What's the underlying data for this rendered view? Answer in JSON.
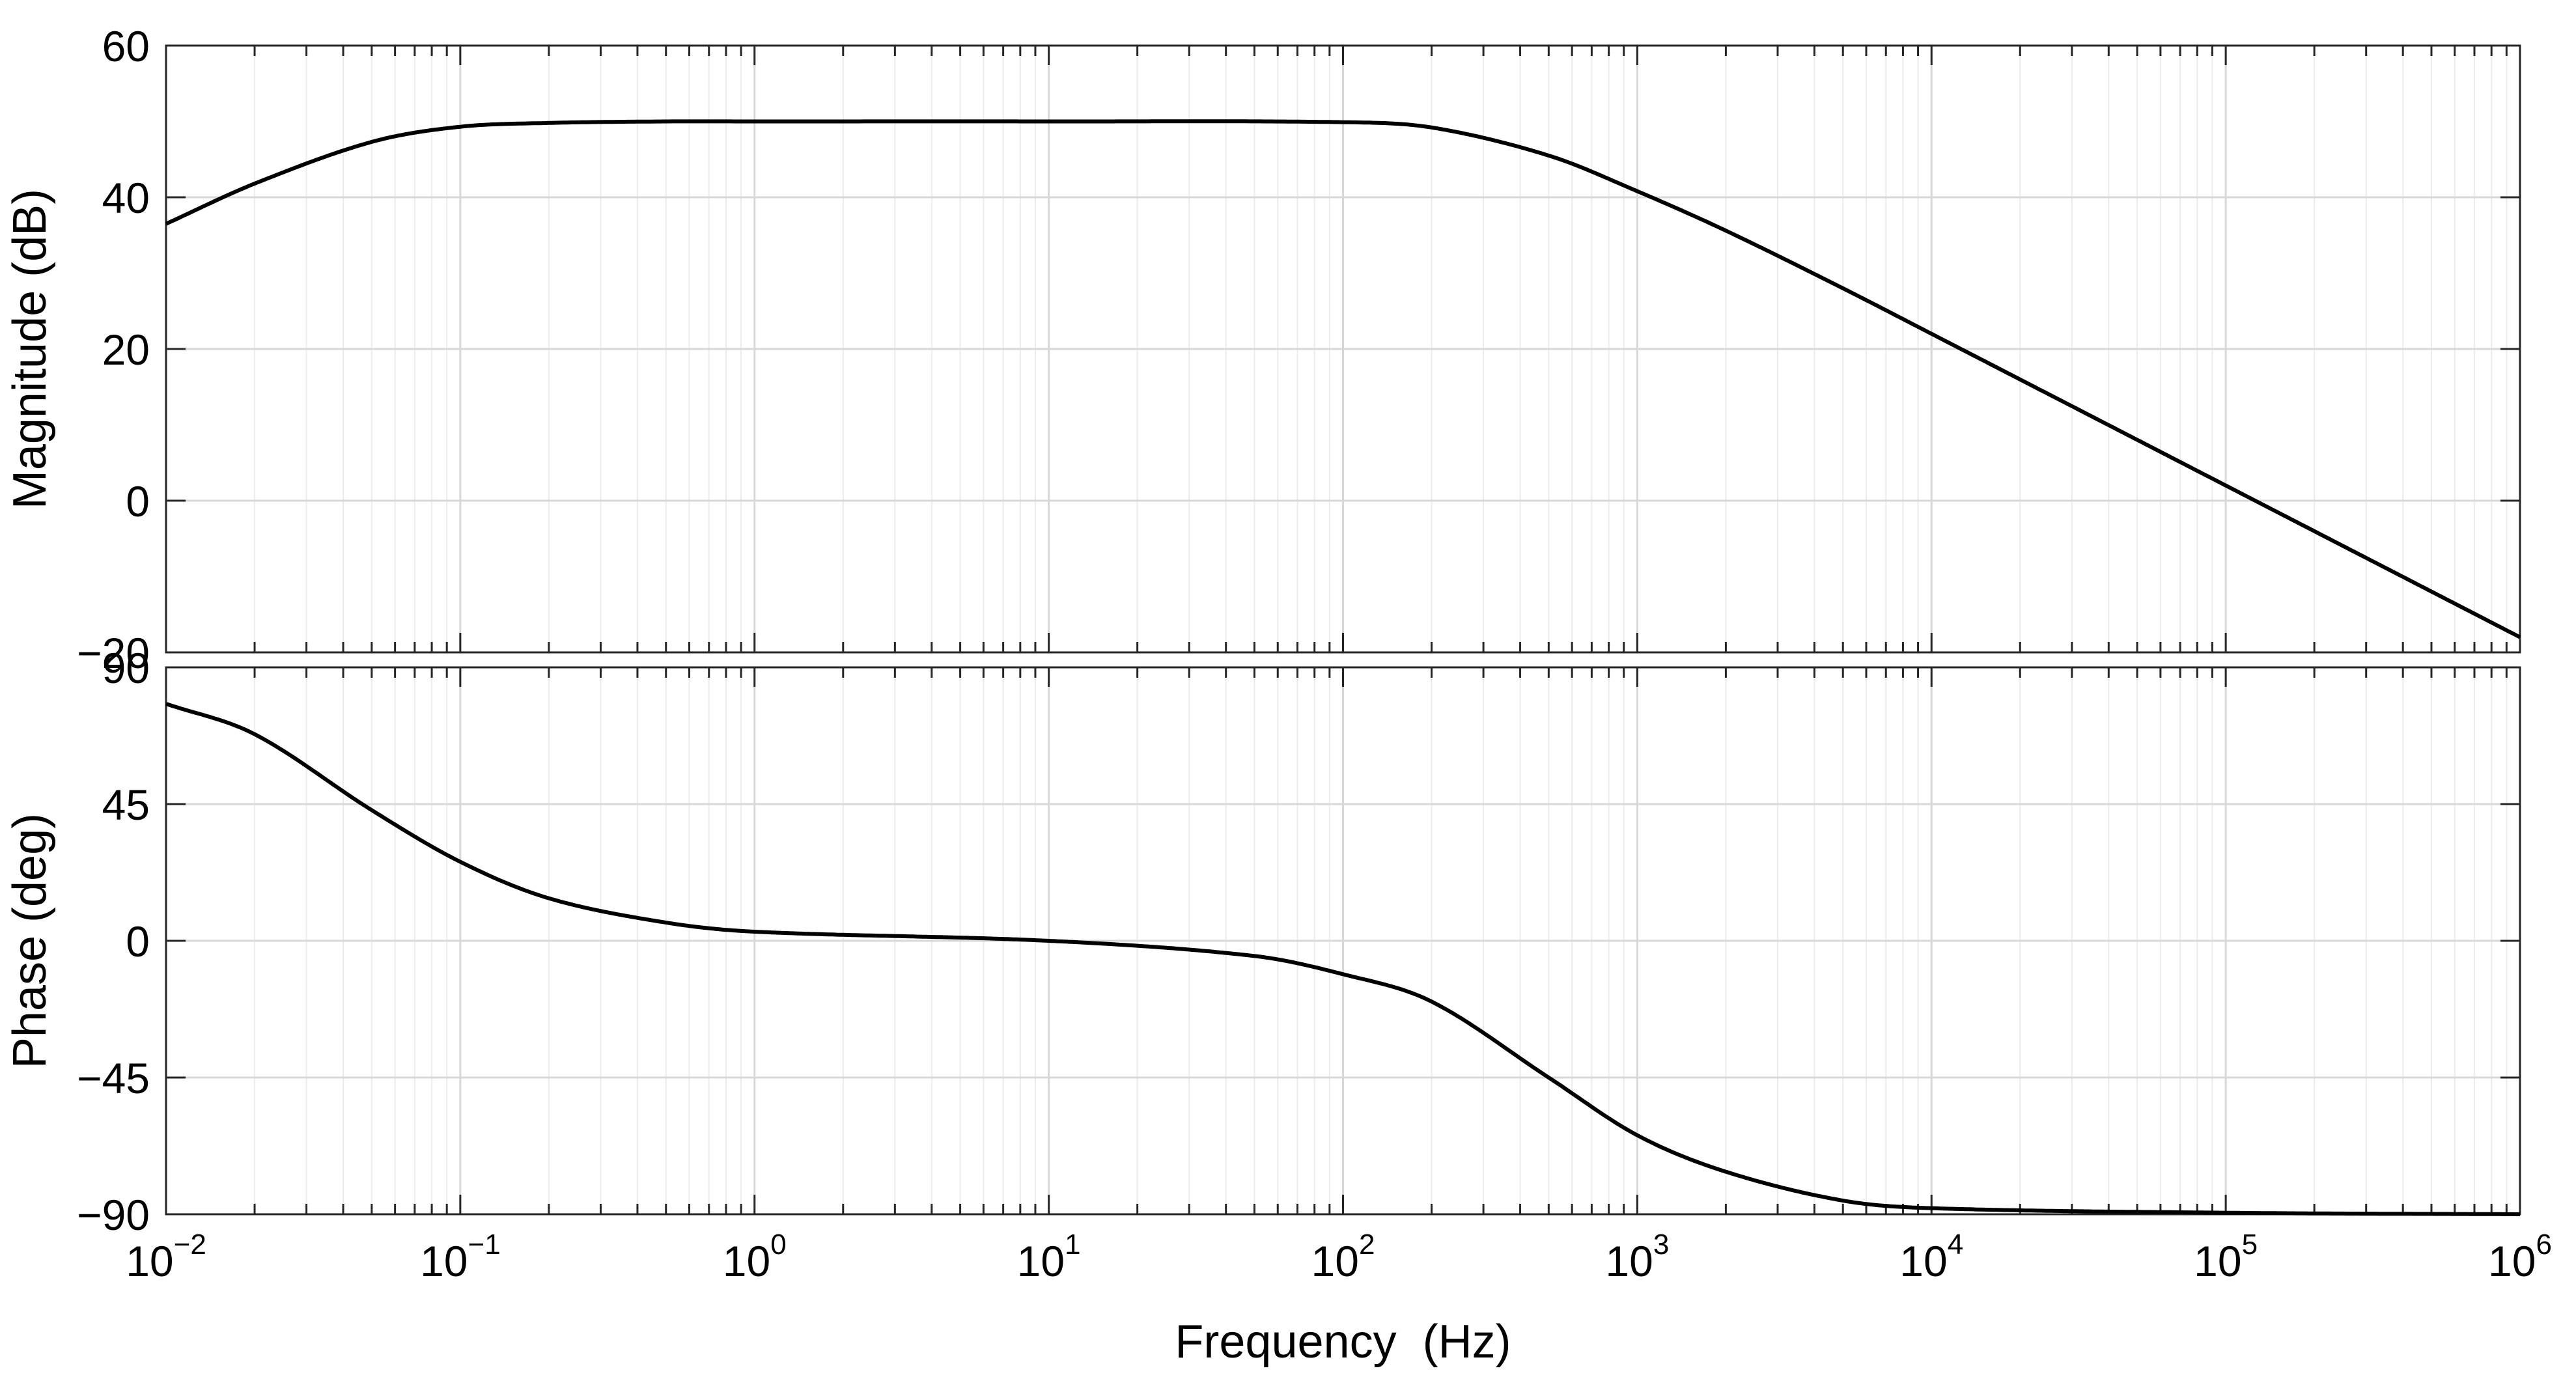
{
  "chart_data": [
    {
      "type": "line",
      "panel": "magnitude",
      "ylabel": "Magnitude (dB)",
      "xscale": "log",
      "xlim": [
        0.01,
        1000000
      ],
      "ylim": [
        -20,
        60
      ],
      "yticks": [
        -20,
        0,
        20,
        40,
        60
      ],
      "ytick_labels": [
        "−20",
        "0",
        "20",
        "40",
        "60"
      ],
      "grid": true,
      "series": [
        {
          "x": [
            0.01,
            0.02,
            0.05,
            0.1,
            0.2,
            0.5,
            1,
            10,
            100,
            200,
            500,
            1000,
            2000,
            5000,
            10000,
            100000,
            1000000
          ],
          "values": [
            36.5,
            41.8,
            47.3,
            49.3,
            49.8,
            50.0,
            50.0,
            50.0,
            49.9,
            49.2,
            45.5,
            40.8,
            35.6,
            28.0,
            22.0,
            2.0,
            -18.0
          ]
        }
      ]
    },
    {
      "type": "line",
      "panel": "phase",
      "ylabel": "Phase (deg)",
      "xlabel": "Frequency  (Hz)",
      "xscale": "log",
      "xlim": [
        0.01,
        1000000
      ],
      "ylim": [
        -90,
        90
      ],
      "yticks": [
        -90,
        -45,
        0,
        45,
        90
      ],
      "ytick_labels": [
        "−90",
        "−45",
        "0",
        "45",
        "90"
      ],
      "xticks": [
        0.01,
        0.1,
        1,
        10,
        100,
        1000,
        10000,
        100000,
        1000000
      ],
      "xtick_labels": [
        {
          "base": "10",
          "exp": "−2"
        },
        {
          "base": "10",
          "exp": "−1"
        },
        {
          "base": "10",
          "exp": "0"
        },
        {
          "base": "10",
          "exp": "1"
        },
        {
          "base": "10",
          "exp": "2"
        },
        {
          "base": "10",
          "exp": "3"
        },
        {
          "base": "10",
          "exp": "4"
        },
        {
          "base": "10",
          "exp": "5"
        },
        {
          "base": "10",
          "exp": "6"
        }
      ],
      "grid": true,
      "series": [
        {
          "x": [
            0.01,
            0.02,
            0.05,
            0.1,
            0.2,
            0.5,
            1,
            10,
            50,
            100,
            200,
            500,
            1000,
            2000,
            5000,
            10000,
            100000,
            1000000
          ],
          "values": [
            78.0,
            68.0,
            43.0,
            26.0,
            14.0,
            6.0,
            3.0,
            0.0,
            -5.0,
            -11.0,
            -20.0,
            -45.0,
            -64.0,
            -76.0,
            -85.5,
            -88.0,
            -89.5,
            -90.0
          ]
        }
      ]
    }
  ]
}
